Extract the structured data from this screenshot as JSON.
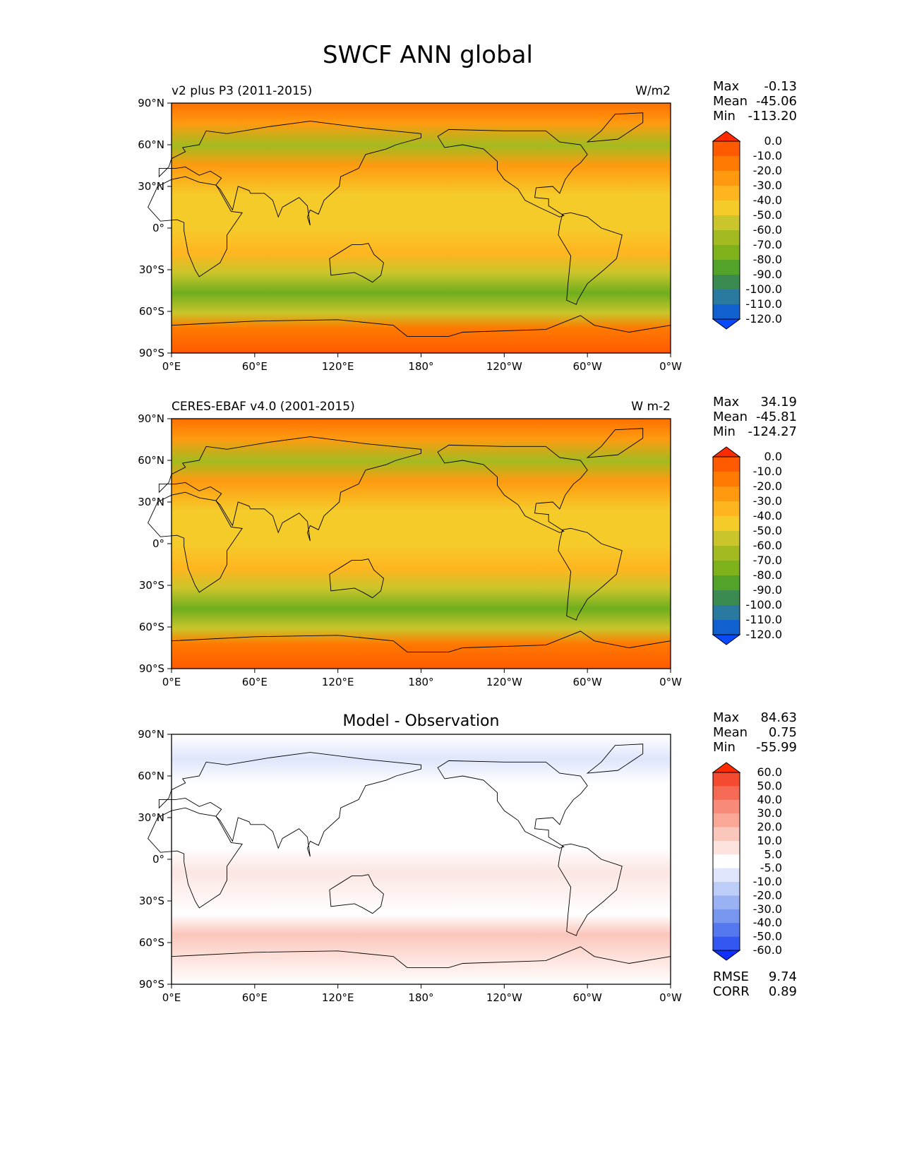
{
  "figure_title": "SWCF ANN global",
  "x_ticks": [
    "0°E",
    "60°E",
    "120°E",
    "180°",
    "120°W",
    "60°W",
    "0°W"
  ],
  "y_ticks": [
    "90°N",
    "60°N",
    "30°N",
    "0°",
    "30°S",
    "60°S",
    "90°S"
  ],
  "panels": [
    {
      "id": "model",
      "title_left": "v2 plus P3 (2011-2015)",
      "title_center": "",
      "units": "W/m2",
      "stats": [
        {
          "label": "Max",
          "value": "-0.13"
        },
        {
          "label": "Mean",
          "value": "-45.06"
        },
        {
          "label": "Min",
          "value": "-113.20"
        }
      ],
      "colorbar_levels": [
        "0.0",
        "-10.0",
        "-20.0",
        "-30.0",
        "-40.0",
        "-50.0",
        "-60.0",
        "-70.0",
        "-80.0",
        "-90.0",
        "-100.0",
        "-110.0",
        "-120.0"
      ],
      "colorbar_colors": [
        "#ff2a00",
        "#ff5a00",
        "#ff7a00",
        "#ff9a10",
        "#ffb520",
        "#f5cb2a",
        "#c9c52a",
        "#a3bb20",
        "#7fb11a",
        "#53a22a",
        "#3a8a52",
        "#2a7aa0",
        "#1060d0",
        "#0a4aff"
      ],
      "footer": []
    },
    {
      "id": "obs",
      "title_left": "CERES-EBAF v4.0 (2001-2015)",
      "title_center": "",
      "units": "W m-2",
      "stats": [
        {
          "label": "Max",
          "value": "34.19"
        },
        {
          "label": "Mean",
          "value": "-45.81"
        },
        {
          "label": "Min",
          "value": "-124.27"
        }
      ],
      "colorbar_levels": [
        "0.0",
        "-10.0",
        "-20.0",
        "-30.0",
        "-40.0",
        "-50.0",
        "-60.0",
        "-70.0",
        "-80.0",
        "-90.0",
        "-100.0",
        "-110.0",
        "-120.0"
      ],
      "colorbar_colors": [
        "#ff2a00",
        "#ff5a00",
        "#ff7a00",
        "#ff9a10",
        "#ffb520",
        "#f5cb2a",
        "#c9c52a",
        "#a3bb20",
        "#7fb11a",
        "#53a22a",
        "#3a8a52",
        "#2a7aa0",
        "#1060d0",
        "#0a4aff"
      ],
      "footer": []
    },
    {
      "id": "diff",
      "title_left": "",
      "title_center": "Model - Observation",
      "units": "",
      "stats": [
        {
          "label": "Max",
          "value": "84.63"
        },
        {
          "label": "Mean",
          "value": "0.75"
        },
        {
          "label": "Min",
          "value": "-55.99"
        }
      ],
      "colorbar_levels": [
        "60.0",
        "50.0",
        "40.0",
        "30.0",
        "20.0",
        "10.0",
        "5.0",
        "-5.0",
        "-10.0",
        "-20.0",
        "-30.0",
        "-40.0",
        "-50.0",
        "-60.0"
      ],
      "colorbar_colors": [
        "#ff2a00",
        "#f44a30",
        "#f46a55",
        "#f78a78",
        "#f9a898",
        "#fbc6bb",
        "#fde3dd",
        "#ffffff",
        "#dfe6fb",
        "#bccdf7",
        "#9ab2f3",
        "#7897ef",
        "#5678ef",
        "#3358f2",
        "#1030ff"
      ],
      "footer": [
        {
          "label": "RMSE",
          "value": "9.74"
        },
        {
          "label": "CORR",
          "value": "0.89"
        }
      ]
    }
  ]
}
